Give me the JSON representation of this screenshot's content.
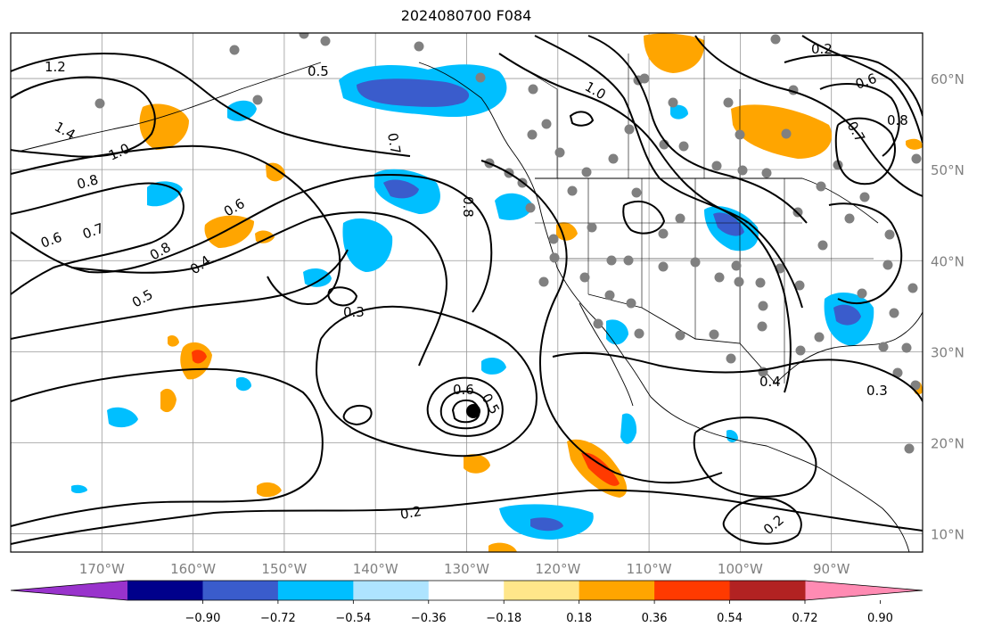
{
  "title": "2024080700 F084",
  "map": {
    "lon_range": [
      -180,
      -80
    ],
    "lat_range": [
      8,
      65
    ],
    "lon_ticks": [
      "170°W",
      "160°W",
      "150°W",
      "140°W",
      "130°W",
      "120°W",
      "110°W",
      "100°W",
      "90°W"
    ],
    "lat_ticks": [
      "10°N",
      "20°N",
      "30°N",
      "40°N",
      "50°N",
      "60°N"
    ],
    "gridlines": true,
    "contour_labels": [
      "1.2",
      "1.4",
      "1.0",
      "0.8",
      "0.7",
      "0.6",
      "0.6",
      "0.8",
      "0.5",
      "0.4",
      "0.3",
      "0.6",
      "0.5",
      "0.2",
      "0.2",
      "0.3",
      "0.4",
      "0.2",
      "0.6",
      "0.8",
      "0.7",
      "1.0",
      "0.7",
      "0.8",
      "0.5"
    ],
    "tropical_cyclone_marker": {
      "lon": -130,
      "lat": 23.5
    }
  },
  "colorbar": {
    "ticks": [
      "−0.90",
      "−0.72",
      "−0.54",
      "−0.36",
      "−0.18",
      "0.18",
      "0.36",
      "0.54",
      "0.72",
      "0.90"
    ],
    "colors": [
      "#9933cc",
      "#00008b",
      "#3a5ccc",
      "#00bfff",
      "#aee4ff",
      "#ffffff",
      "#ffe68a",
      "#ffa500",
      "#ff3a00",
      "#b22222",
      "#ff8bb3"
    ]
  }
}
